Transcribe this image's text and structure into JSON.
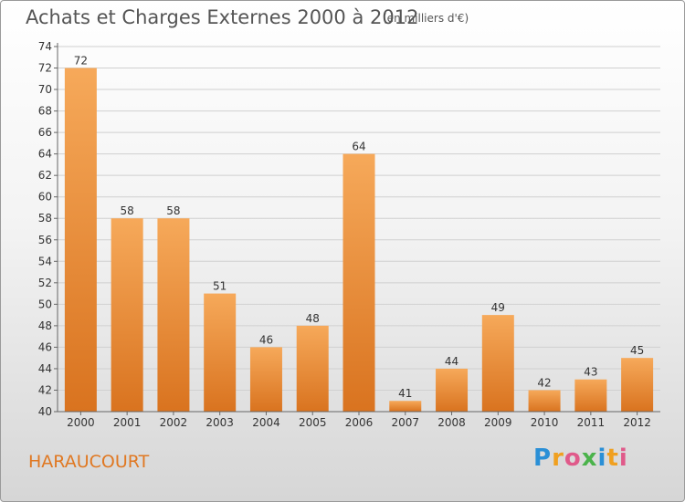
{
  "title": "Achats et Charges Externes 2000 à 2012",
  "subtitle": "(en milliers d'€)",
  "commune": "HARAUCOURT",
  "logo_text": "Proxiti",
  "colors": {
    "bar_light": "#f6a95a",
    "bar_dark": "#d9731f",
    "accent": "#e07822",
    "axis": "#666666",
    "grid": "#d0d0d0"
  },
  "chart_data": {
    "type": "bar",
    "categories": [
      "2000",
      "2001",
      "2002",
      "2003",
      "2004",
      "2005",
      "2006",
      "2007",
      "2008",
      "2009",
      "2010",
      "2011",
      "2012"
    ],
    "values": [
      72,
      58,
      58,
      51,
      46,
      48,
      64,
      41,
      44,
      49,
      42,
      43,
      45
    ],
    "ylim": [
      40,
      74
    ],
    "yticks": [
      40,
      42,
      44,
      46,
      48,
      50,
      52,
      54,
      56,
      58,
      60,
      62,
      64,
      66,
      68,
      70,
      72,
      74
    ],
    "grid": true,
    "xlabel": "",
    "ylabel": ""
  }
}
